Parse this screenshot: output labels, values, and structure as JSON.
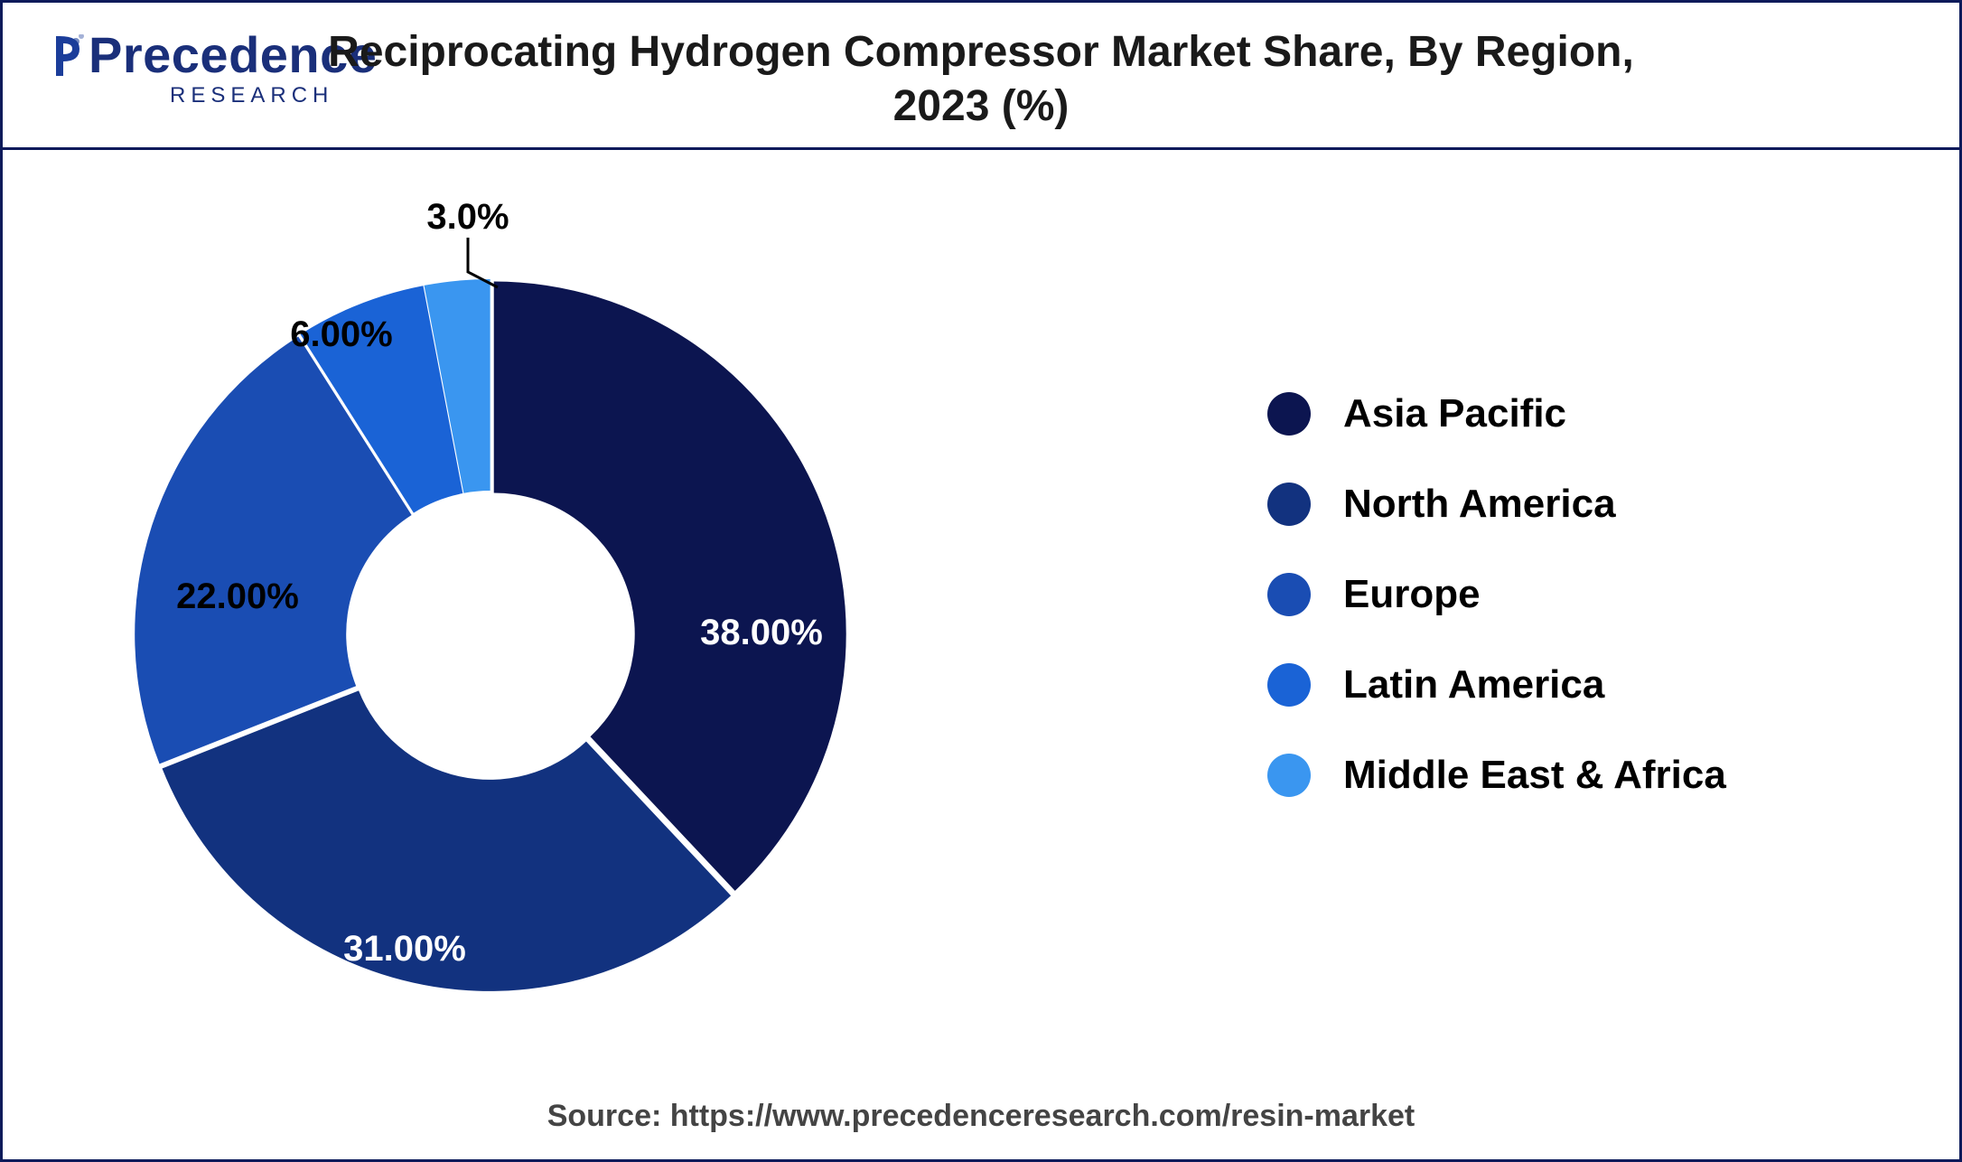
{
  "logo": {
    "main": "Precedence",
    "sub": "RESEARCH"
  },
  "title_line1": "Reciprocating Hydrogen Compressor Market Share, By Region,",
  "title_line2": "2023 (%)",
  "chart": {
    "type": "donut",
    "background_color": "#ffffff",
    "inner_radius_ratio": 0.4,
    "segments": [
      {
        "label": "Asia Pacific",
        "value": 38,
        "display": "38.00%",
        "color": "#0c1550"
      },
      {
        "label": "North America",
        "value": 31,
        "display": "31.00%",
        "color": "#12327f"
      },
      {
        "label": "Europe",
        "value": 22,
        "display": "22.00%",
        "color": "#1a4db3"
      },
      {
        "label": "Latin America",
        "value": 6,
        "display": "6.00%",
        "color": "#1a63d6"
      },
      {
        "label": "Middle East & Africa",
        "value": 3,
        "display": "3.0%",
        "color": "#3a96f0"
      }
    ],
    "label_fontsize": 40,
    "label_fontweight": 700
  },
  "legend": {
    "fontsize": 44,
    "fontweight": 700,
    "swatch_size": 48
  },
  "source": "Source: https://www.precedenceresearch.com/resin-market"
}
